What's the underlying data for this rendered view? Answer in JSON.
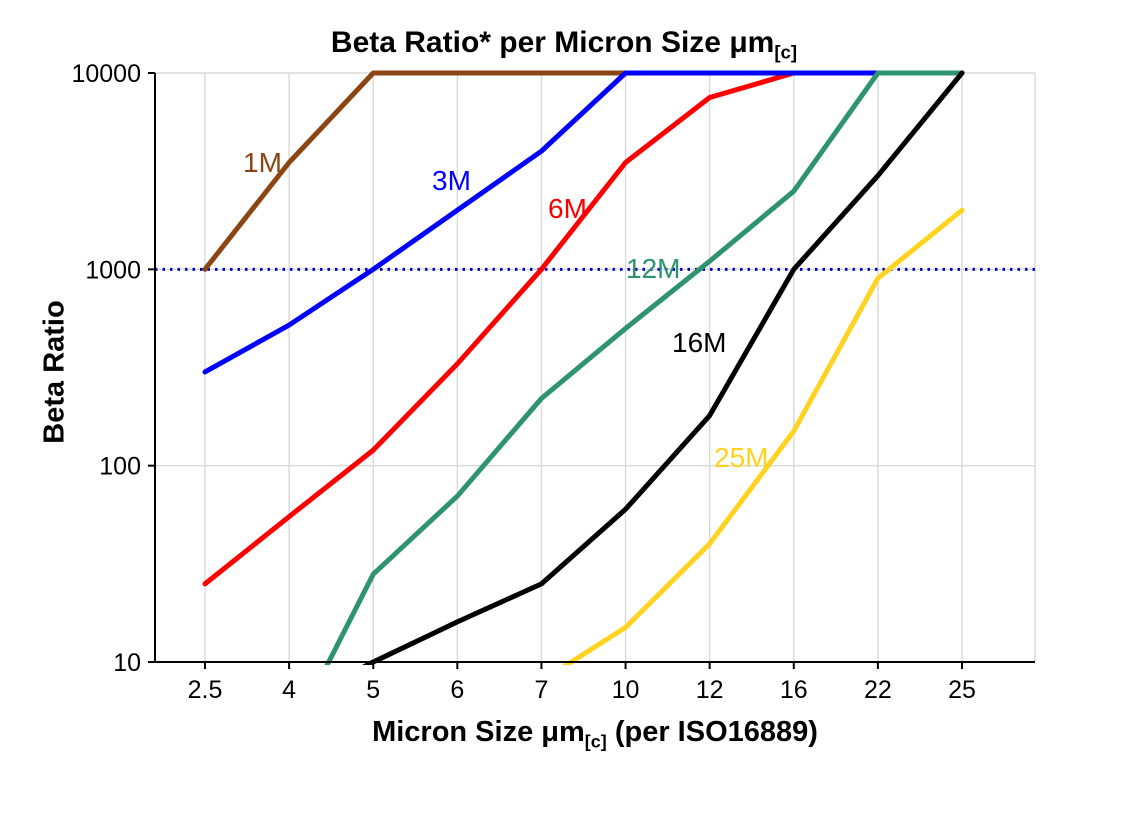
{
  "text": {
    "title_main": "Beta Ratio* per Micron Size μm",
    "title_sub": "[c]",
    "ylabel": "Beta Ratio",
    "xlabel_main": "Micron Size μm",
    "xlabel_sub": "[c]",
    "xlabel_suffix": " (per ISO16889)"
  },
  "y_axis": {
    "ticks": [
      "10000",
      "1000",
      "100",
      "10"
    ],
    "tick_values": [
      10000,
      1000,
      100,
      10
    ]
  },
  "x_axis": {
    "ticks": [
      "2.5",
      "4",
      "5",
      "6",
      "7",
      "10",
      "12",
      "16",
      "22",
      "25"
    ]
  },
  "chart_data": {
    "type": "line",
    "title": "Beta Ratio* per Micron Size μm[c]",
    "xlabel": "Micron Size μm[c] (per ISO16889)",
    "ylabel": "Beta Ratio",
    "x_scale": "categorical",
    "y_scale": "log10",
    "ylim": [
      10,
      10000
    ],
    "grid": true,
    "grid_color": "#D9D9D9",
    "categories": [
      2.5,
      4,
      5,
      6,
      7,
      10,
      12,
      16,
      22,
      25
    ],
    "reference_line": {
      "value": 1000,
      "color": "#0000CC",
      "style": "dotted"
    },
    "series": [
      {
        "name": "6M",
        "color": "#FF0000",
        "values": [
          25,
          55,
          120,
          330,
          1000,
          3500,
          7500,
          10000,
          10000,
          10000
        ]
      },
      {
        "name": "1M",
        "color": "#8B4513",
        "values": [
          1000,
          3500,
          10000,
          10000,
          10000,
          10000,
          10000,
          10000,
          10000,
          10000
        ]
      },
      {
        "name": "3M",
        "color": "#0000FF",
        "values": [
          300,
          520,
          1000,
          2000,
          4000,
          10000,
          10000,
          10000,
          10000,
          10000
        ]
      },
      {
        "name": "12M",
        "color": "#2E9470",
        "values": [
          null,
          4,
          28,
          70,
          220,
          500,
          1100,
          2500,
          10000,
          10000
        ]
      },
      {
        "name": "16M",
        "color": "#000000",
        "values": [
          null,
          6,
          10,
          16,
          25,
          60,
          180,
          1000,
          3000,
          10000
        ]
      },
      {
        "name": "25M",
        "color": "#FFD320",
        "values": [
          null,
          null,
          null,
          null,
          8,
          15,
          40,
          150,
          900,
          2000
        ]
      }
    ]
  }
}
